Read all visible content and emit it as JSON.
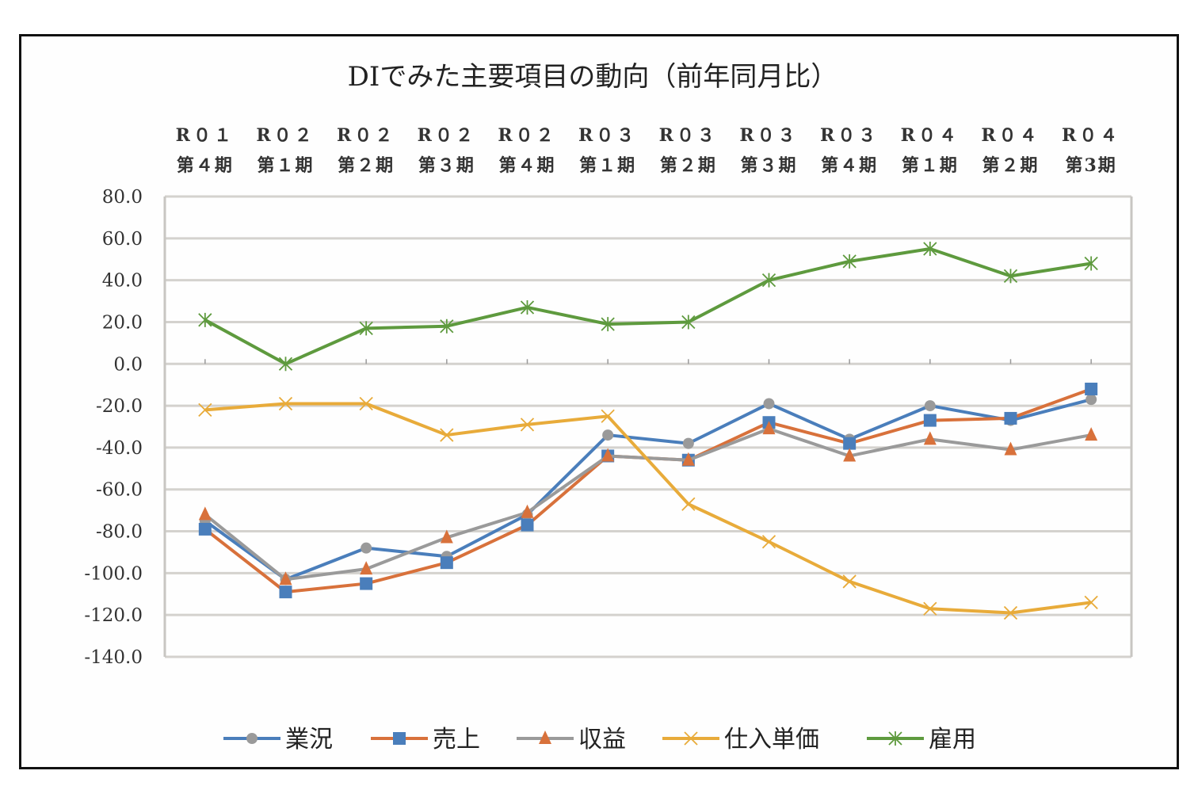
{
  "chart_data": {
    "type": "line",
    "title": "DIでみた主要項目の動向（前年同月比）",
    "categories": [
      [
        "R０１",
        "第４期"
      ],
      [
        "R０２",
        "第１期"
      ],
      [
        "R０２",
        "第２期"
      ],
      [
        "R０２",
        "第３期"
      ],
      [
        "R０２",
        "第４期"
      ],
      [
        "R０３",
        "第１期"
      ],
      [
        "R０３",
        "第２期"
      ],
      [
        "R０３",
        "第３期"
      ],
      [
        "R０３",
        "第４期"
      ],
      [
        "R０４",
        "第１期"
      ],
      [
        "R０４",
        "第２期"
      ],
      [
        "R０４",
        "第3期"
      ]
    ],
    "category_labels_top": [
      "R０１",
      "R０２",
      "R０２",
      "R０２",
      "R０２",
      "R０３",
      "R０３",
      "R０３",
      "R０３",
      "R０４",
      "R０４",
      "R０４"
    ],
    "category_labels_bottom": [
      "第４期",
      "第１期",
      "第２期",
      "第３期",
      "第４期",
      "第１期",
      "第２期",
      "第３期",
      "第４期",
      "第１期",
      "第２期",
      "第3期"
    ],
    "ylim": [
      -140,
      80
    ],
    "yticks": [
      80,
      60,
      40,
      20,
      0,
      -20,
      -40,
      -60,
      -80,
      -100,
      -120,
      -140
    ],
    "ytick_labels": [
      "80.0",
      "60.0",
      "40.0",
      "20.0",
      "0.0",
      "-20.0",
      "-40.0",
      "-60.0",
      "-80.0",
      "-100.0",
      "-120.0",
      "-140.0"
    ],
    "grid": true,
    "xaxis_position": "top",
    "legend_position": "bottom",
    "series": [
      {
        "name": "業況",
        "line_color": "#4a7ebb",
        "marker": "circle",
        "marker_color": "#9a9a9a",
        "values": [
          -75,
          -103,
          -88,
          -92,
          -72,
          -34,
          -38,
          -19,
          -36,
          -20,
          -27,
          -17
        ]
      },
      {
        "name": "売上",
        "line_color": "#d8713b",
        "marker": "square",
        "marker_color": "#4a7ebb",
        "values": [
          -79,
          -109,
          -105,
          -95,
          -77,
          -44,
          -46,
          -28,
          -38,
          -27,
          -26,
          -12
        ]
      },
      {
        "name": "収益",
        "line_color": "#9a9a9a",
        "marker": "triangle",
        "marker_color": "#d8713b",
        "values": [
          -72,
          -103,
          -98,
          -83,
          -71,
          -44,
          -46,
          -31,
          -44,
          -36,
          -41,
          -34
        ]
      },
      {
        "name": "仕入単価",
        "line_color": "#e8ab3a",
        "marker": "x",
        "marker_color": "#e8ab3a",
        "values": [
          -22,
          -19,
          -19,
          -34,
          -29,
          -25,
          -67,
          -85,
          -104,
          -117,
          -119,
          -114
        ]
      },
      {
        "name": "雇用",
        "line_color": "#5e9a3e",
        "marker": "asterisk",
        "marker_color": "#5e9a3e",
        "values": [
          21,
          0,
          17,
          18,
          27,
          19,
          20,
          40,
          49,
          55,
          42,
          48
        ]
      }
    ]
  },
  "colors": {
    "frame": "#111111",
    "grid": "#d4d2ce",
    "axis": "#c8c6c2"
  }
}
